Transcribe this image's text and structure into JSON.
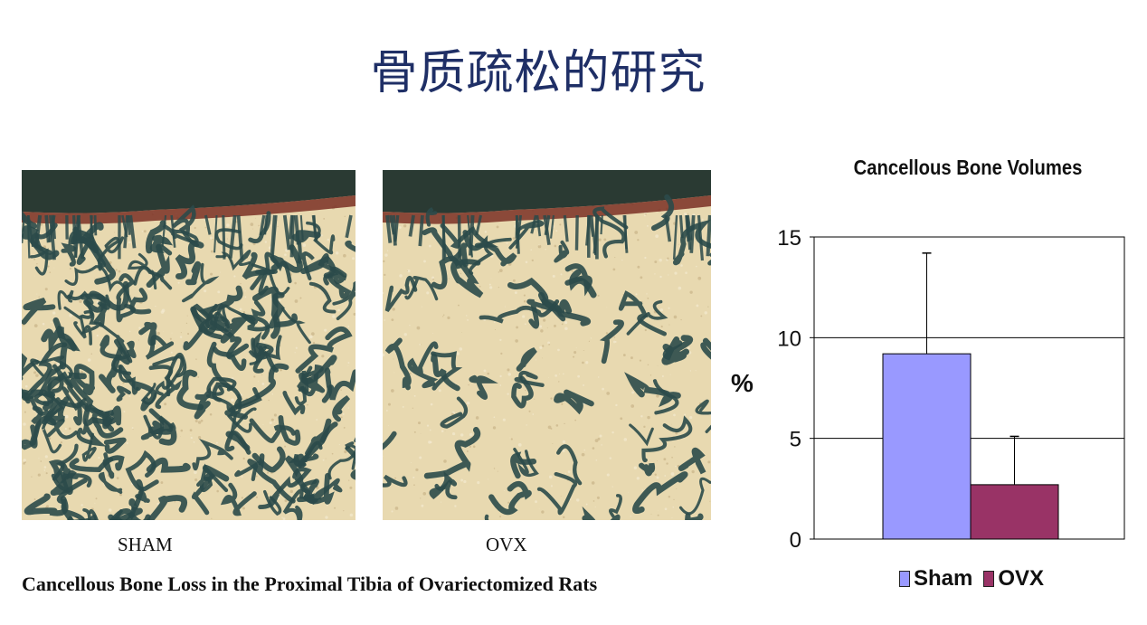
{
  "slide": {
    "title": "骨质疏松的研究"
  },
  "figure": {
    "labels": {
      "left": "SHAM",
      "right": "OVX"
    },
    "caption": "Cancellous Bone Loss in the Proximal Tibia of Ovariectomized Rats"
  },
  "colors": {
    "title": "#1f2f66",
    "sham": "#9999ff",
    "ovx": "#993366",
    "tissue": "#e8d9b0",
    "trabecula": "#2b4a4a",
    "cortex": "#7a2f25"
  },
  "chart_data": {
    "type": "bar",
    "title": "Cancellous Bone Volumes",
    "ylabel": "%",
    "ylim": [
      0,
      15
    ],
    "yticks": [
      "0",
      "5",
      "10",
      "15"
    ],
    "grid": true,
    "legend_position": "bottom",
    "series": [
      {
        "name": "Sham",
        "values": [
          9.2
        ],
        "error": [
          5.0
        ],
        "color": "#9999ff"
      },
      {
        "name": "OVX",
        "values": [
          2.7
        ],
        "error": [
          2.4
        ],
        "color": "#993366"
      }
    ]
  }
}
